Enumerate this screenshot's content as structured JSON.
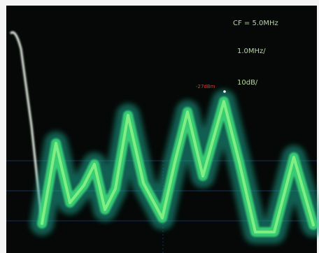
{
  "annotations": {
    "center_frequency": "CF = 5.0MHz",
    "span_per_division": "1.0MHz/",
    "scale_per_division": "10dB/",
    "marker": "-27dBm"
  }
}
